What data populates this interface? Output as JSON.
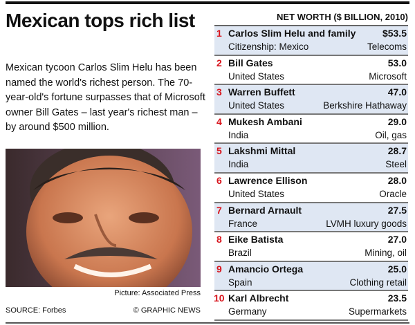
{
  "title": "Mexican tops rich list",
  "intro": "Mexican tycoon Carlos Slim Helu has been named the world's richest person. The 70-year-old's fortune surpasses that of Microsoft owner Bill Gates – last year's richest man – by around $500 million.",
  "photo_caption": "Picture: Associated Press",
  "source": "SOURCE: Forbes",
  "credit": "© GRAPHIC NEWS",
  "table": {
    "header": "NET WORTH ($ BILLION, 2010)",
    "accent_color": "#d8141c",
    "shade_color": "#dfe7f3",
    "rows": [
      {
        "rank": "1",
        "name": "Carlos Slim Helu and family",
        "worth": "$53.5",
        "country": "Citizenship: Mexico",
        "industry": "Telecoms"
      },
      {
        "rank": "2",
        "name": "Bill Gates",
        "worth": "53.0",
        "country": "United States",
        "industry": "Microsoft"
      },
      {
        "rank": "3",
        "name": "Warren Buffett",
        "worth": "47.0",
        "country": "United States",
        "industry": "Berkshire Hathaway"
      },
      {
        "rank": "4",
        "name": "Mukesh Ambani",
        "worth": "29.0",
        "country": "India",
        "industry": "Oil, gas"
      },
      {
        "rank": "5",
        "name": "Lakshmi Mittal",
        "worth": "28.7",
        "country": "India",
        "industry": "Steel"
      },
      {
        "rank": "6",
        "name": "Lawrence Ellison",
        "worth": "28.0",
        "country": "United States",
        "industry": "Oracle"
      },
      {
        "rank": "7",
        "name": "Bernard Arnault",
        "worth": "27.5",
        "country": "France",
        "industry": "LVMH luxury goods"
      },
      {
        "rank": "8",
        "name": "Eike Batista",
        "worth": "27.0",
        "country": "Brazil",
        "industry": "Mining, oil"
      },
      {
        "rank": "9",
        "name": "Amancio Ortega",
        "worth": "25.0",
        "country": "Spain",
        "industry": "Clothing retail"
      },
      {
        "rank": "10",
        "name": "Karl Albrecht",
        "worth": "23.5",
        "country": "Germany",
        "industry": "Supermarkets"
      }
    ]
  }
}
